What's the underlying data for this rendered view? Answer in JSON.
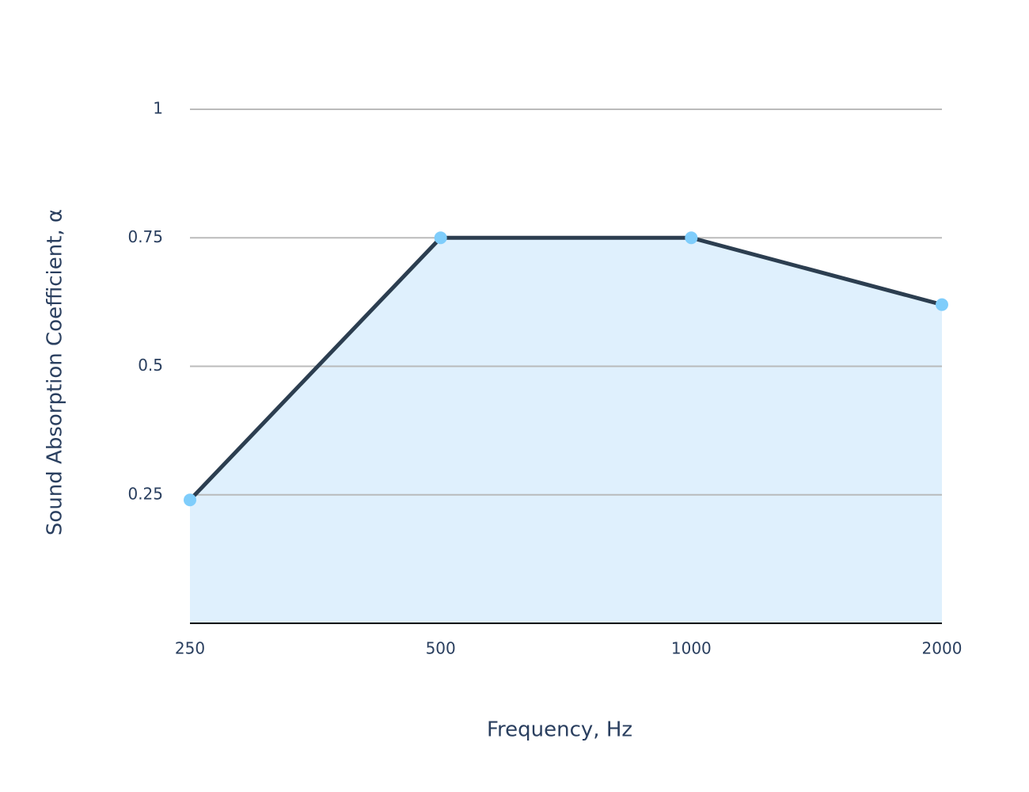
{
  "chart_data": {
    "type": "line",
    "x_label": "Frequency, Hz",
    "y_label": "Sound Absorption Coefficient, α",
    "x": [
      250,
      500,
      1000,
      2000
    ],
    "series": [
      {
        "values": [
          0.24,
          0.75,
          0.75,
          0.62
        ],
        "color": "#2c3e50",
        "marker_color": "#7fcdfb",
        "fill_color": "#dff0fd"
      }
    ],
    "xscale": "log",
    "xlim": [
      250,
      2000
    ],
    "xticks": [
      250,
      500,
      1000,
      2000
    ],
    "ylim": [
      0,
      1
    ],
    "yticks": [
      0.25,
      0.5,
      0.75,
      1
    ],
    "grid": true
  }
}
